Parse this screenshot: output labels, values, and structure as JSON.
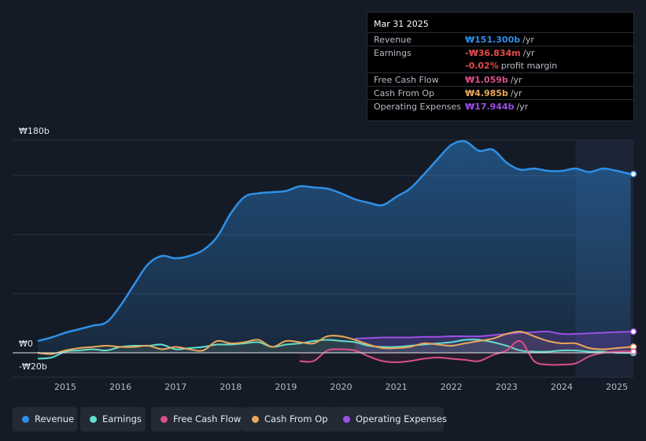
{
  "tooltip": {
    "date": "Mar 31 2025",
    "rows": [
      {
        "label": "Revenue",
        "value": "₩151.300b",
        "suffix": "/yr",
        "color": "#2f8fe6"
      },
      {
        "label": "Earnings",
        "value": "-₩36.834m",
        "suffix": "/yr",
        "color": "#e64b4b"
      },
      {
        "label": "",
        "value": "-0.02%",
        "suffix": "profit margin",
        "color": "#e64b4b"
      },
      {
        "label": "Free Cash Flow",
        "value": "₩1.059b",
        "suffix": "/yr",
        "color": "#d94f8a"
      },
      {
        "label": "Cash From Op",
        "value": "₩4.985b",
        "suffix": "/yr",
        "color": "#e8a75a"
      },
      {
        "label": "Operating Expenses",
        "value": "₩17.944b",
        "suffix": "/yr",
        "color": "#9b4fe6"
      }
    ]
  },
  "legend": [
    {
      "label": "Revenue",
      "color": "#2f8fe6"
    },
    {
      "label": "Earnings",
      "color": "#5fe0d0"
    },
    {
      "label": "Free Cash Flow",
      "color": "#d94f8a"
    },
    {
      "label": "Cash From Op",
      "color": "#e8a75a"
    },
    {
      "label": "Operating Expenses",
      "color": "#9b4fe6"
    }
  ],
  "chart_data": {
    "type": "area",
    "title": "",
    "xlabel": "",
    "ylabel": "",
    "unit": "KRW billions",
    "ylim": [
      -20,
      180
    ],
    "y_tick_labels": [
      {
        "value": 180,
        "label": "₩180b"
      },
      {
        "value": 0,
        "label": "₩0"
      },
      {
        "value": -20,
        "label": "-₩20b"
      }
    ],
    "x_tick_labels": [
      "2015",
      "2016",
      "2017",
      "2018",
      "2019",
      "2020",
      "2021",
      "2022",
      "2023",
      "2024",
      "2025"
    ],
    "x_ticks": [
      2015,
      2016,
      2017,
      2018,
      2019,
      2020,
      2021,
      2022,
      2023,
      2024,
      2025
    ],
    "xlim": [
      2014.5,
      2025.3
    ],
    "highlight_from": 2024.25,
    "series": [
      {
        "name": "Revenue",
        "color": "#2f8fe6",
        "fill": true,
        "x": [
          2014.5,
          2014.75,
          2015.0,
          2015.25,
          2015.5,
          2015.75,
          2016.0,
          2016.25,
          2016.5,
          2016.75,
          2017.0,
          2017.25,
          2017.5,
          2017.75,
          2018.0,
          2018.25,
          2018.5,
          2018.75,
          2019.0,
          2019.25,
          2019.5,
          2019.75,
          2020.0,
          2020.25,
          2020.5,
          2020.75,
          2021.0,
          2021.25,
          2021.5,
          2021.75,
          2022.0,
          2022.25,
          2022.5,
          2022.75,
          2023.0,
          2023.25,
          2023.5,
          2023.75,
          2024.0,
          2024.25,
          2024.5,
          2024.75,
          2025.0,
          2025.25
        ],
        "values": [
          10,
          13,
          17,
          20,
          23,
          26,
          40,
          58,
          75,
          82,
          80,
          82,
          87,
          98,
          118,
          132,
          135,
          136,
          137,
          141,
          140,
          139,
          135,
          130,
          127,
          125,
          132,
          139,
          151,
          164,
          176,
          179,
          171,
          172,
          161,
          155,
          156,
          154,
          154,
          156,
          153,
          156,
          154,
          151.3
        ]
      },
      {
        "name": "Earnings",
        "color": "#5fe0d0",
        "fill": false,
        "x": [
          2014.5,
          2014.75,
          2015.0,
          2015.25,
          2015.5,
          2015.75,
          2016.0,
          2016.25,
          2016.5,
          2016.75,
          2017.0,
          2017.25,
          2017.5,
          2017.75,
          2018.0,
          2018.25,
          2018.5,
          2018.75,
          2019.0,
          2019.25,
          2019.5,
          2019.75,
          2020.0,
          2020.25,
          2020.5,
          2020.75,
          2021.0,
          2021.25,
          2021.5,
          2021.75,
          2022.0,
          2022.25,
          2022.5,
          2022.75,
          2023.0,
          2023.25,
          2023.5,
          2023.75,
          2024.0,
          2024.25,
          2024.5,
          2024.75,
          2025.0,
          2025.25
        ],
        "values": [
          -5,
          -4,
          1,
          2,
          3,
          2,
          5,
          6,
          6,
          7,
          3,
          4,
          5,
          7,
          7,
          8,
          9,
          5,
          7,
          8,
          10,
          11,
          10,
          9,
          6,
          5,
          5,
          6,
          7,
          8,
          9,
          11,
          11,
          9,
          6,
          2,
          1,
          1,
          2,
          2,
          1,
          1,
          0,
          -0.04
        ]
      },
      {
        "name": "Free Cash Flow",
        "color": "#d94f8a",
        "fill": false,
        "x": [
          2019.25,
          2019.5,
          2019.75,
          2020.0,
          2020.25,
          2020.5,
          2020.75,
          2021.0,
          2021.25,
          2021.5,
          2021.75,
          2022.0,
          2022.25,
          2022.5,
          2022.75,
          2023.0,
          2023.25,
          2023.5,
          2023.75,
          2024.0,
          2024.25,
          2024.5,
          2024.75,
          2025.0,
          2025.25
        ],
        "values": [
          -7,
          -7,
          2,
          3,
          2,
          -3,
          -7,
          -8,
          -7,
          -5,
          -4,
          -5,
          -6,
          -7,
          -2,
          2,
          10,
          -7,
          -10,
          -10,
          -9,
          -3,
          0,
          1,
          1.06
        ]
      },
      {
        "name": "Cash From Op",
        "color": "#e8a75a",
        "fill": false,
        "x": [
          2014.5,
          2014.75,
          2015.0,
          2015.25,
          2015.5,
          2015.75,
          2016.0,
          2016.25,
          2016.5,
          2016.75,
          2017.0,
          2017.25,
          2017.5,
          2017.75,
          2018.0,
          2018.25,
          2018.5,
          2018.75,
          2019.0,
          2019.25,
          2019.5,
          2019.75,
          2020.0,
          2020.25,
          2020.5,
          2020.75,
          2021.0,
          2021.25,
          2021.5,
          2021.75,
          2022.0,
          2022.25,
          2022.5,
          2022.75,
          2023.0,
          2023.25,
          2023.5,
          2023.75,
          2024.0,
          2024.25,
          2024.5,
          2024.75,
          2025.0,
          2025.25
        ],
        "values": [
          0,
          -1,
          2,
          4,
          5,
          6,
          5,
          5,
          6,
          3,
          5,
          3,
          2,
          10,
          8,
          9,
          11,
          5,
          10,
          9,
          8,
          14,
          14,
          11,
          7,
          4,
          4,
          5,
          8,
          7,
          6,
          8,
          10,
          12,
          16,
          18,
          14,
          10,
          8,
          8,
          4,
          3,
          4,
          4.985
        ]
      },
      {
        "name": "Operating Expenses",
        "color": "#9b4fe6",
        "fill": true,
        "x": [
          2020.25,
          2020.5,
          2020.75,
          2021.0,
          2021.25,
          2021.5,
          2021.75,
          2022.0,
          2022.25,
          2022.5,
          2022.75,
          2023.0,
          2023.25,
          2023.5,
          2023.75,
          2024.0,
          2024.25,
          2024.5,
          2024.75,
          2025.0,
          2025.25
        ],
        "values": [
          12,
          12.5,
          13,
          13,
          13,
          13.5,
          13.5,
          14,
          14,
          14,
          15,
          16,
          17,
          17.5,
          18,
          16,
          16,
          16.5,
          17,
          17.5,
          17.944
        ]
      }
    ]
  }
}
